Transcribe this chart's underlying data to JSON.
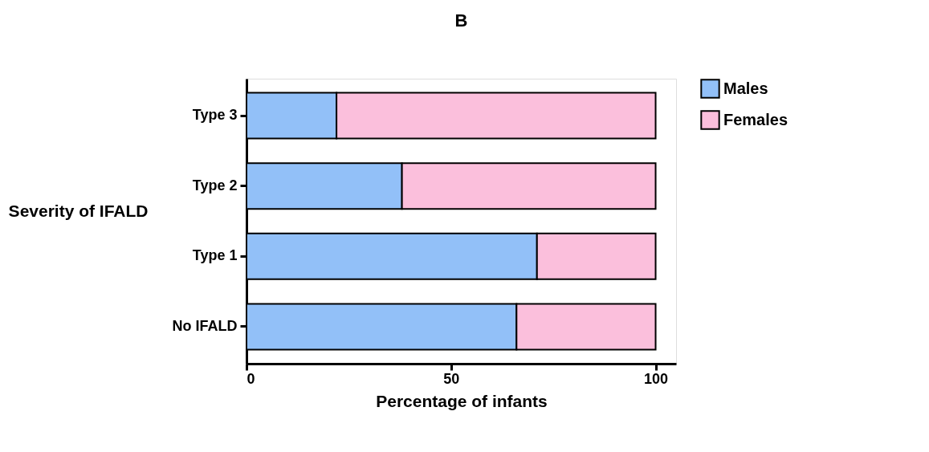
{
  "chart_data": {
    "type": "bar",
    "title": "B",
    "xlabel": "Percentage of infants",
    "ylabel": "Severity of IFALD",
    "orientation": "horizontal",
    "stacked": true,
    "categories": [
      "Type 3",
      "Type 2",
      "Type 1",
      "No IFALD"
    ],
    "series": [
      {
        "name": "Males",
        "color": "#92c0f8",
        "values": [
          22,
          38,
          71,
          66
        ]
      },
      {
        "name": "Females",
        "color": "#fbbfdc",
        "values": [
          78,
          62,
          29,
          34
        ]
      }
    ],
    "xlim": [
      0,
      105
    ],
    "xticks": [
      0,
      50,
      100
    ],
    "grid": false,
    "legend": "top right"
  }
}
